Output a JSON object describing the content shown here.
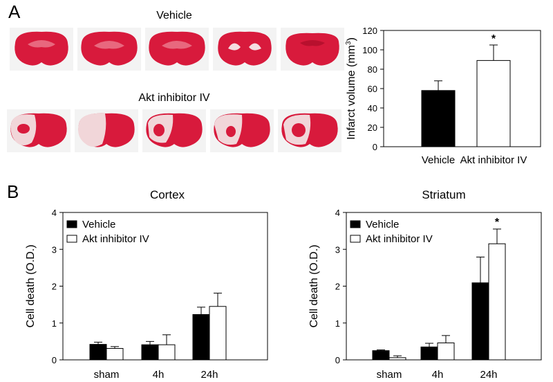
{
  "panels": {
    "a": "A",
    "b": "B"
  },
  "images": {
    "top_label": "Vehicle",
    "bottom_label": "Akt  inhibitor IV",
    "tissue_color": "#d81a3c",
    "lesion_color": "#f1d6d9"
  },
  "colors": {
    "vehicle": "#000000",
    "inhibitor": "#ffffff",
    "axis": "#000000"
  },
  "chart_data": [
    {
      "id": "infarct",
      "type": "bar",
      "title": "",
      "ylabel": "Infarct volume (mm",
      "ylabel_sup": "3",
      "ylabel_close": ")",
      "xlabel": "",
      "ylim": [
        0,
        120
      ],
      "yticks": [
        "0",
        "20",
        "40",
        "60",
        "80",
        "100",
        "120"
      ],
      "categories": [
        "Vehicle",
        "Akt inhibitor IV"
      ],
      "values": [
        58,
        89
      ],
      "errors": [
        10,
        16
      ],
      "annotation": "*"
    },
    {
      "id": "cortex",
      "type": "bar",
      "title": "Cortex",
      "ylabel": "Cell death (O.D.)",
      "xlabel": "",
      "ylim": [
        0,
        4
      ],
      "yticks": [
        "0",
        "1",
        "2",
        "3",
        "4"
      ],
      "categories": [
        "sham",
        "4h",
        "24h"
      ],
      "legend": [
        "Vehicle",
        "Akt inhibitor IV"
      ],
      "series": [
        {
          "name": "Vehicle",
          "values": [
            0.42,
            0.41,
            1.23
          ],
          "errors": [
            0.06,
            0.09,
            0.2
          ]
        },
        {
          "name": "Akt inhibitor IV",
          "values": [
            0.31,
            0.41,
            1.45
          ],
          "errors": [
            0.05,
            0.27,
            0.36
          ]
        }
      ]
    },
    {
      "id": "striatum",
      "type": "bar",
      "title": "Striatum",
      "ylabel": "Cell death (O.D.)",
      "xlabel": "",
      "ylim": [
        0,
        4
      ],
      "yticks": [
        "0",
        "1",
        "2",
        "3",
        "4"
      ],
      "categories": [
        "sham",
        "4h",
        "24h"
      ],
      "legend": [
        "Vehicle",
        "Akt inhibitor IV"
      ],
      "series": [
        {
          "name": "Vehicle",
          "values": [
            0.25,
            0.35,
            2.09
          ],
          "errors": [
            0.02,
            0.1,
            0.7
          ]
        },
        {
          "name": "Akt inhibitor IV",
          "values": [
            0.06,
            0.46,
            3.15
          ],
          "errors": [
            0.05,
            0.2,
            0.4
          ]
        }
      ],
      "annotation": "*"
    }
  ]
}
